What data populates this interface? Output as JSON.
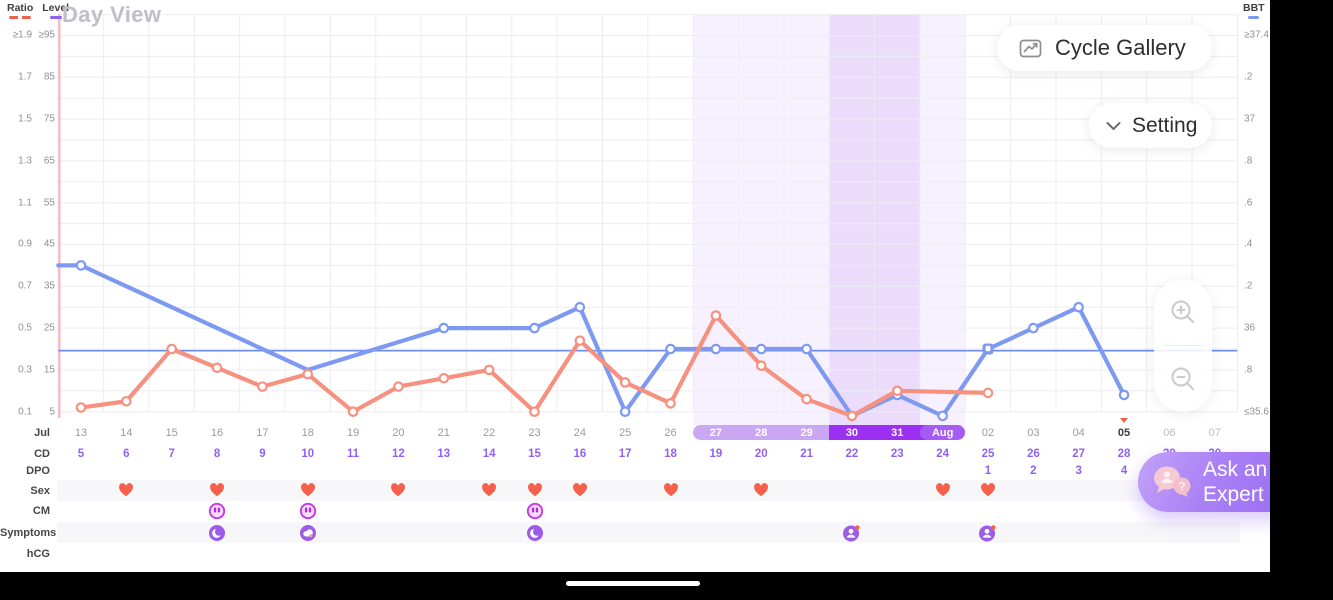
{
  "title": "Day View",
  "legend": {
    "ratio_label": "Ratio",
    "level_label": "Level",
    "bbt_label": "BBT"
  },
  "buttons": {
    "cycle_gallery": "Cycle Gallery",
    "setting": "Setting",
    "ask_expert_line1": "Ask an",
    "ask_expert_line2": "Expert"
  },
  "icons": {
    "cycle_gallery": "trend-chart-icon",
    "setting": "chevron-down-icon",
    "zoom_in": "zoom-in-icon",
    "zoom_out": "zoom-out-icon",
    "ask_expert": "chat-bubbles-icon",
    "sex": "heart-icon",
    "cm": "cm-drops-icon",
    "today": "today-triangle-icon"
  },
  "colors": {
    "line_blue": "#7d99f1",
    "line_orange": "#f69180",
    "coverline": "#6d8cf0",
    "heart_red": "#f4604b",
    "cm_magenta": "#c438e8",
    "symptom_purple": "#9d5ce8",
    "cd_purple": "#9161f2",
    "band_light": "rgba(151,61,241,0.08)",
    "band_dark": "rgba(151,61,241,0.18)",
    "pill_light": "#c9a7f3",
    "pill_dark": "#9b30f2",
    "pill_aug": "#a65cf4",
    "period_pink": "#f6bcc4",
    "grid": "#ededf1"
  },
  "axes": {
    "ratio_ticks": [
      "≥1.9",
      "1.7",
      "1.5",
      "1.3",
      "1.1",
      "0.9",
      "0.7",
      "0.5",
      "0.3",
      "0.1"
    ],
    "level_ticks": [
      "≥95",
      "85",
      "75",
      "65",
      "55",
      "45",
      "35",
      "25",
      "15",
      "5"
    ],
    "bbt_ticks": [
      "≥37.4",
      ".2",
      "37",
      ".8",
      ".6",
      ".4",
      ".2",
      "36",
      ".8",
      "≤35.6"
    ]
  },
  "chart_data": {
    "type": "line",
    "month_label": "Jul",
    "categories": [
      "13",
      "14",
      "15",
      "16",
      "17",
      "18",
      "19",
      "20",
      "21",
      "22",
      "23",
      "24",
      "25",
      "26",
      "27",
      "28",
      "29",
      "30",
      "31",
      "Aug",
      "02",
      "03",
      "04",
      "05",
      "06",
      "07"
    ],
    "today": "05",
    "future_dates": [
      "06",
      "07"
    ],
    "fertile_bands": [
      {
        "start": "27",
        "end": "29",
        "shade": "light"
      },
      {
        "start": "30",
        "end": "31",
        "shade": "dark"
      },
      {
        "start": "Aug",
        "end": "Aug",
        "shade": "light"
      }
    ],
    "date_pill": {
      "light_range": [
        "27",
        "29"
      ],
      "dark_range": [
        "30",
        "31"
      ],
      "aug_segment": "Aug"
    },
    "coverline": {
      "level": 19.6,
      "bbt_equiv": 35.9
    },
    "period_start_line": true,
    "series": [
      {
        "name": "BBT",
        "axis": "bbt",
        "color_key": "line_blue",
        "lead_from_left_edge": true,
        "points": [
          {
            "date": "13",
            "level": 40,
            "bbt": 36.3
          },
          {
            "date": "18",
            "level": 15,
            "bbt": 35.8,
            "hide_marker": true
          },
          {
            "date": "21",
            "level": 25,
            "bbt": 36.0
          },
          {
            "date": "23",
            "level": 25,
            "bbt": 36.0
          },
          {
            "date": "24",
            "level": 30,
            "bbt": 36.1
          },
          {
            "date": "25",
            "level": 5,
            "bbt": 35.6
          },
          {
            "date": "26",
            "level": 20,
            "bbt": 35.9
          },
          {
            "date": "27",
            "level": 20,
            "bbt": 35.9
          },
          {
            "date": "28",
            "level": 20,
            "bbt": 35.9
          },
          {
            "date": "29",
            "level": 20,
            "bbt": 35.9
          },
          {
            "date": "30",
            "level": 4,
            "bbt": 35.6,
            "hide_marker": true
          },
          {
            "date": "31",
            "level": 9,
            "bbt": 35.7
          },
          {
            "date": "Aug",
            "level": 4,
            "bbt": 35.6
          },
          {
            "date": "02",
            "level": 20,
            "bbt": 35.9,
            "marker": "square"
          },
          {
            "date": "03",
            "level": 25,
            "bbt": 36.0
          },
          {
            "date": "04",
            "level": 30,
            "bbt": 36.1
          },
          {
            "date": "05",
            "level": 9,
            "bbt": 35.7
          }
        ]
      },
      {
        "name": "Ratio",
        "axis": "ratio",
        "color_key": "line_orange",
        "points": [
          {
            "date": "13",
            "level": 6,
            "ratio": 0.12
          },
          {
            "date": "14",
            "level": 7.5,
            "ratio": 0.15
          },
          {
            "date": "15",
            "level": 20,
            "ratio": 0.4
          },
          {
            "date": "16",
            "level": 15.5,
            "ratio": 0.31
          },
          {
            "date": "17",
            "level": 11,
            "ratio": 0.22
          },
          {
            "date": "18",
            "level": 14,
            "ratio": 0.28
          },
          {
            "date": "19",
            "level": 5,
            "ratio": 0.1
          },
          {
            "date": "20",
            "level": 11,
            "ratio": 0.22
          },
          {
            "date": "21",
            "level": 13,
            "ratio": 0.26
          },
          {
            "date": "22",
            "level": 15,
            "ratio": 0.3
          },
          {
            "date": "23",
            "level": 5,
            "ratio": 0.1
          },
          {
            "date": "24",
            "level": 22,
            "ratio": 0.44
          },
          {
            "date": "25",
            "level": 12,
            "ratio": 0.24
          },
          {
            "date": "26",
            "level": 7,
            "ratio": 0.14
          },
          {
            "date": "27",
            "level": 28,
            "ratio": 0.56
          },
          {
            "date": "28",
            "level": 16,
            "ratio": 0.32
          },
          {
            "date": "29",
            "level": 8,
            "ratio": 0.16
          },
          {
            "date": "30",
            "level": 4,
            "ratio": 0.1
          },
          {
            "date": "31",
            "level": 10,
            "ratio": 0.2
          },
          {
            "date": "02",
            "level": 9.5,
            "ratio": 0.19
          }
        ]
      }
    ],
    "rows": {
      "labels": [
        "Jul",
        "CD",
        "DPO",
        "Sex",
        "CM",
        "Symptoms",
        "hCG"
      ],
      "cd_values": [
        "5",
        "6",
        "7",
        "8",
        "9",
        "10",
        "11",
        "12",
        "13",
        "14",
        "15",
        "16",
        "17",
        "18",
        "19",
        "20",
        "21",
        "22",
        "23",
        "24",
        "25",
        "26",
        "27",
        "28",
        "29",
        "30"
      ],
      "dpo_values": {
        "02": "1",
        "03": "2",
        "04": "3",
        "05": "4"
      },
      "sex_dates": [
        "14",
        "16",
        "18",
        "20",
        "22",
        "23",
        "24",
        "26",
        "28",
        "Aug",
        "02"
      ],
      "cm_dates": [
        "16",
        "18",
        "23"
      ],
      "symptom_entries": [
        {
          "date": "16",
          "icon": "moon-icon"
        },
        {
          "date": "18",
          "icon": "cloud-icon"
        },
        {
          "date": "23",
          "icon": "moon-icon"
        },
        {
          "date": "30",
          "icon": "mood-person-icon"
        },
        {
          "date": "02",
          "icon": "mood-person-icon"
        }
      ],
      "hcg_entries": []
    }
  }
}
